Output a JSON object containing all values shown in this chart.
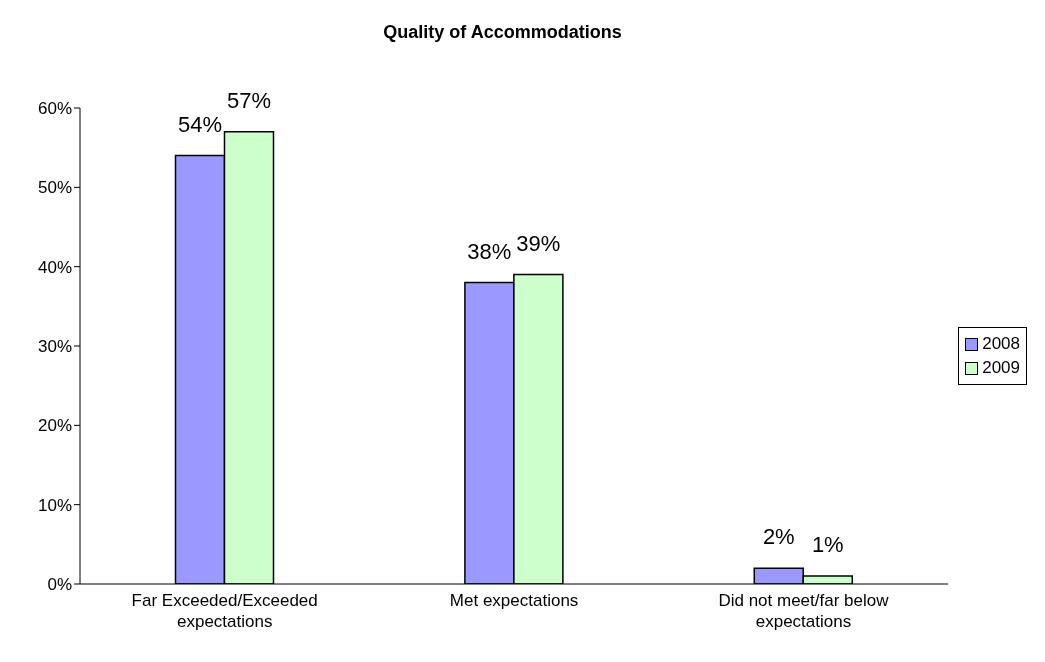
{
  "chart_data": {
    "type": "bar",
    "title": "Quality of Accommodations",
    "categories": [
      "Far Exceeded/Exceeded expectations",
      "Met expectations",
      "Did not meet/far below expectations"
    ],
    "series": [
      {
        "name": "2008",
        "color": "#9999ff",
        "values": [
          54,
          38,
          2
        ],
        "value_labels": [
          "54%",
          "38%",
          "2%"
        ]
      },
      {
        "name": "2009",
        "color": "#ccffcc",
        "values": [
          57,
          39,
          1
        ],
        "value_labels": [
          "57%",
          "39%",
          "1%"
        ]
      }
    ],
    "ylim": [
      0,
      60
    ],
    "yticks": [
      {
        "value": 0,
        "label": "0%"
      },
      {
        "value": 10,
        "label": "10%"
      },
      {
        "value": 20,
        "label": "20%"
      },
      {
        "value": 30,
        "label": "30%"
      },
      {
        "value": 40,
        "label": "40%"
      },
      {
        "value": 50,
        "label": "50%"
      },
      {
        "value": 60,
        "label": "60%"
      }
    ],
    "grid": false,
    "legend": "right"
  }
}
